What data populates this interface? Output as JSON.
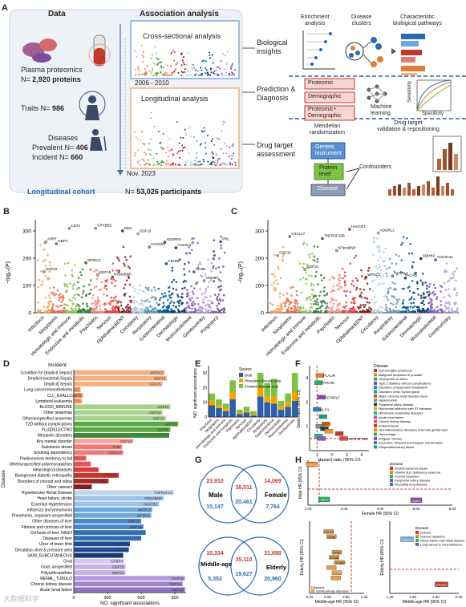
{
  "panel_a": {
    "letter": "A",
    "headers": {
      "data": "Data",
      "association": "Association analysis"
    },
    "plasma_line1": "Plasma proteomics",
    "plasma_n_prefix": "N= ",
    "plasma_n_value": "2,920 proteins",
    "traits_prefix": "Traits N= ",
    "traits_value": "986",
    "diseases": "Diseases",
    "prevalent_prefix": "Prevalent N= ",
    "prevalent_value": "406",
    "incident_prefix": "Incident N= ",
    "incident_value": "660",
    "cross_title": "Cross-sectional analysis",
    "years": "2006 - 2010",
    "long_title": "Longitudinal analysis",
    "nov": "Nov. 2023",
    "cohort": "Longitudinal cohort",
    "participants_prefix": "N= ",
    "participants_value": "53,026 participants",
    "bio_insights": [
      "Biological",
      "insights"
    ],
    "enrichment": [
      "Enrichment",
      "analysis"
    ],
    "disease_clusters": [
      "Disease",
      "clusters"
    ],
    "characteristic": [
      "Characteristic",
      "biological pathways"
    ],
    "prediction": [
      "Prediction &",
      "Diagnosis"
    ],
    "proteomic": "Proteomic",
    "demographic": "Demographic",
    "prot_demo": [
      "Proteomic+",
      "Demographic"
    ],
    "machine_learning": [
      "Machine",
      "learning"
    ],
    "sensitivity": "Sensitivity",
    "specificity": "Specificity",
    "drug_target": [
      "Drug target",
      "assessment"
    ],
    "mendelian": [
      "Mendelian",
      "randomization"
    ],
    "genetic_instrument": [
      "Genetic",
      "instrument"
    ],
    "protein_level": [
      "Protein",
      "level"
    ],
    "disease_box": "Disease",
    "confounders": "Confounders",
    "drug_validation": [
      "Drug target",
      "validation & repositioning"
    ],
    "accent_blue": "#2b6cb0",
    "accent_orange": "#e07b39"
  },
  "panel_b": {
    "letter": "B",
    "ylabel": "−log₁₀(P)",
    "yticks": [
      "0",
      "100",
      "200",
      "300"
    ],
    "categories": [
      "Infectious",
      "Neoplasms",
      "Hematologic and immune",
      "Endocrine and metabolic",
      "Psychiatric",
      "Nervous",
      "Ophthalmic&ENT",
      "Circulatory",
      "Respiratory",
      "Gastrointestinal",
      "Dermatologic",
      "Musculoskeletal",
      "Genitourinary",
      "Pregnancy"
    ],
    "colors": [
      "#f4a261",
      "#e76f51",
      "#8bc34a",
      "#2e7d32",
      "#f28b82",
      "#e53935",
      "#8b1a1a",
      "#b3cde0",
      "#6497b1",
      "#005b96",
      "#03396c",
      "#7e57c2",
      "#b39ddb",
      "#6a4c93"
    ],
    "labels": [
      "GDF15",
      "APRT",
      "GBP4",
      "CD70",
      "WFDC2",
      "GDF15",
      "CRYBB2",
      "NTproBNP",
      "REN",
      "GDF15",
      "HAVCR1",
      "ADGRF5",
      "CRHBP",
      "COL9A1",
      "ACAN",
      "CRHBP",
      "PRL"
    ]
  },
  "panel_c": {
    "letter": "C",
    "ylabel": "−log₁₀(P)",
    "yticks": [
      "0",
      "100",
      "200",
      "300"
    ],
    "categories": [
      "Infectious",
      "Neoplasms",
      "Hematologic and immune",
      "Endocrine and metabolic",
      "Psychiatric",
      "Nervous",
      "Ophthalmic&ENT",
      "Circulatory",
      "Respiratory",
      "Gastrointestinal",
      "Dermatologic",
      "Musculoskeletal",
      "Genitourinary"
    ],
    "labels": [
      "GDF15",
      "CXCL17",
      "GDF15",
      "TNFRSF10B",
      "NTproBNP",
      "HAVCR1",
      "WFDC2",
      "ADGRL2",
      "ACVRL1",
      "ACAN",
      "CDHR2",
      "COL9A1"
    ]
  },
  "panel_d": {
    "letter": "D",
    "legend": "Incident",
    "ylabel": "Disease",
    "xlabel": "NO. significant associations",
    "xticks": [
      "0",
      "300",
      "600",
      "900"
    ]
  },
  "chart_data": [
    {
      "type": "bar",
      "title": "",
      "xlabel": "NO. significant associations",
      "ylabel": "Disease",
      "xlim": [
        0,
        1000
      ],
      "categories": [
        "Condition for [Implicit Sepsis]",
        "[Implicit bacterial] Sepsis",
        "[Implicit] Sepsis",
        "Lung cancer/mesothelioma",
        "CLL_EXALLC",
        "Lymphoid leukaemia",
        "BLOOD_IMMUNE",
        "Other anaemias",
        "Other/unspecified anaemias",
        "T2D without complications",
        "FLU|DELECTRO",
        "Metabolic disorders",
        "Any mental disorder",
        "Substance abuse",
        "Smoking dependency",
        "Parkinsonism tendency to fall",
        "Other/unspecified polyneuropathies",
        "Neurological diseases",
        "Background diabetic retinopathy",
        "Disorders of choroid and retina",
        "Other cataract",
        "Hypertensive Renal Disease",
        "Heart failure, stroke",
        "Essential Hypertension",
        "Influenza and pneumonia",
        "Pneumonia, organism unspecified",
        "Other diseases of liver",
        "Fibrosis and cirrhosis of liver",
        "Cirrhosis of liver, NASH",
        "Diseases of liver",
        "Ulcer of lower limb",
        "Decubitus ulcer & pressure area",
        "SKIN_SUBCUTANEOUS",
        "Gout",
        "Gout, unspecified",
        "Polyarthropathies",
        "RENAL_TUBULO",
        "Chronic kidney disease",
        "Acute renal failure"
      ],
      "values": [
        810,
        830,
        790,
        60,
        80,
        70,
        860,
        790,
        820,
        930,
        860,
        850,
        530,
        430,
        440,
        110,
        150,
        220,
        400,
        310,
        160,
        890,
        800,
        760,
        700,
        690,
        600,
        620,
        640,
        600,
        500,
        490,
        440,
        450,
        460,
        460,
        990,
        970,
        990
      ],
      "bar_labels": [
        "WFDC2",
        "GDF15",
        "GDF15",
        "",
        "CD70",
        "",
        "GDF15",
        "GDF15",
        "GDF15",
        "GDF15",
        "GDF15",
        "",
        "GDF15",
        "PI4B",
        "CXCL17",
        "",
        "",
        "",
        "PIK3IP1",
        "PLXNB2",
        "EDA2R",
        "TNFRSF13",
        "NTproBNP",
        "HAVCR1",
        "WFDC2",
        "WFDC2",
        "GDF15",
        "GDF15",
        "",
        "",
        "GDF15",
        "GDF15",
        "",
        "GFBP4",
        "GDF15",
        "GDF15",
        "GDF15",
        "GDF15",
        "GDF15"
      ],
      "colors": [
        "#f4b183",
        "#f4b183",
        "#f4b183",
        "#f08c5a",
        "#f08c5a",
        "#f08c5a",
        "#a9d18e",
        "#a9d18e",
        "#a9d18e",
        "#5aa845",
        "#5aa845",
        "#3d8b37",
        "#f8a5a5",
        "#f07b7b",
        "#f07b7b",
        "#e05555",
        "#e05555",
        "#d93a3a",
        "#c0392b",
        "#a52a2a",
        "#8b1a1a",
        "#bdd7ee",
        "#9dc3e6",
        "#9dc3e6",
        "#6fa8dc",
        "#6fa8dc",
        "#4a86c8",
        "#4a86c8",
        "#2f6db5",
        "#2f6db5",
        "#1f4e91",
        "#1f4e91",
        "#163a70",
        "#d6c8ef",
        "#c5b3e6",
        "#c5b3e6",
        "#b29bd9",
        "#9f86cf",
        "#8e72c5"
      ]
    },
    {
      "type": "bar",
      "title": "",
      "ylabel": "NO. significant associations",
      "ylim": [
        0,
        35
      ],
      "categories": [
        "Infectious",
        "Neoplasms",
        "Hematologic and immune",
        "Endocrine and metabolic",
        "Psychiatric",
        "Nervous",
        "Ophthalmic&ENT",
        "Circulatory",
        "Respiratory",
        "Gastrointestinal",
        "Dermatologic",
        "Musculoskeletal",
        "Genitourinary"
      ],
      "series": [
        {
          "name": "Both",
          "values": [
            8,
            6,
            4,
            12,
            2,
            3,
            1,
            14,
            10,
            9,
            5,
            7,
            11
          ]
        },
        {
          "name": "Prevalent disease only",
          "values": [
            3,
            2,
            2,
            5,
            1,
            1,
            1,
            6,
            4,
            5,
            2,
            3,
            6
          ]
        },
        {
          "name": "Incident disease only",
          "values": [
            5,
            4,
            3,
            8,
            2,
            3,
            2,
            10,
            9,
            12,
            4,
            6,
            13
          ]
        }
      ],
      "series_colors": [
        "#2f5fa7",
        "#f4a300",
        "#7dc242"
      ],
      "legend_title": "Source",
      "yticks": [
        "0",
        "10",
        "20",
        "30"
      ]
    },
    {
      "type": "scatter",
      "title": "",
      "xlabel": "Hazard ratio (95% CI)",
      "ylabel": "Odds ratio (95% CI)",
      "xticks": [
        "1",
        "2",
        "3",
        "4"
      ],
      "yticks": [
        "2",
        "3",
        "4"
      ],
      "legend_title": "Disease",
      "legend": [
        "Non-Hodgkin lymphoma",
        "Malignant neoplasm of prostate",
        "Leiomyoma of uterus",
        "Type 2 diabetes without complications",
        "Disorders of lipoprotein metabolism",
        "Disorders of the thyroid gland",
        "Major coronary heart disease event",
        "Hypertension",
        "Peripheral artery disease",
        "Myocardial infarction with ST elevation",
        "Mitral/valve respiratory diseases",
        "Acute renal failure",
        "Chronic kidney disease",
        "Endometriosis",
        "Non-inflammatory disorders of female genital tract",
        "Hemorrhage",
        "Irregular menses",
        "Excessive, frequent and irregular menstruation",
        "Unspecified kidney failure"
      ],
      "labels": [
        "TNFRSF13B",
        "PLAUR",
        "ATRAID",
        "CD300LF",
        "KLF4"
      ],
      "x": [
        2.5,
        1.2,
        1.1,
        1.3,
        1.0,
        1.4,
        1.6,
        1.2,
        1.5,
        1.8,
        1.1,
        1.3,
        2.8
      ],
      "y": [
        1.7,
        4.1,
        3.8,
        3.2,
        2.7,
        2.4,
        2.1,
        2.0,
        1.9,
        1.8,
        1.6,
        1.5,
        1.5
      ]
    },
    {
      "type": "scatter",
      "title": "",
      "xlabel": "Female HR (95% CI)",
      "ylabel": "Male HR (95% CI)",
      "xticks": [
        "1.00",
        "2.00",
        "4.00",
        "6.00",
        "8.20"
      ],
      "legend_title": "Disease",
      "legend": [
        "Implicit bacterial sepsis",
        "Vitamin B12 deficiency anaemia",
        "Volume depletion",
        "Peripheral artery disease",
        "Interstitial lung disease"
      ],
      "labels": [
        "GDF15",
        "TFF3",
        "CDK4"
      ],
      "x": [
        1.2,
        1.8,
        6.4
      ],
      "y": [
        6.0,
        1.7,
        1.6
      ]
    },
    {
      "type": "scatter",
      "title": "",
      "xlabel": "Middle-age HR (95% CI)",
      "ylabel": "Elderly HR (95% CI)",
      "xticks": [
        "0.20",
        "0.80",
        "0.90",
        "1.20"
      ],
      "legend": [
        "Diseases",
        "Genitourinary diseases"
      ],
      "labels": [
        "CCL14",
        "CD44",
        "CFAD",
        "CD164",
        "COL6A3"
      ],
      "x": [
        0.55,
        0.6,
        0.7,
        0.65,
        0.75,
        0.6,
        0.7,
        0.68
      ],
      "y": [
        1.2,
        1.15,
        1.0,
        0.95,
        0.9,
        0.85,
        0.8,
        0.75
      ]
    },
    {
      "type": "scatter",
      "title": "",
      "xlabel": "Middle-age HR (95% CI)",
      "ylabel": "Elderly HR (95% CI)",
      "xticks": [
        "1.20",
        "1.60",
        "2.00",
        "2.40"
      ],
      "legend_title": "Disease",
      "legend": [
        "Ketosis",
        "Volume depletion",
        "Renal tubulo-interstitial disease",
        "Lung cancer & mesothelioma"
      ],
      "labels": [
        "CDHR2",
        "EPHA2"
      ],
      "x": [
        1.5,
        2.1
      ],
      "y": [
        2.1,
        1.35
      ]
    }
  ],
  "panel_e": {
    "letter": "E",
    "legend_title": "Source",
    "ylabel": "NO. significant associations"
  },
  "panel_f": {
    "letter": "F"
  },
  "panel_g": {
    "letter": "G",
    "venn_top": {
      "left_label": "Male",
      "right_label": "Female",
      "left_top": "23,910",
      "overlap_top": "38,011",
      "right_top": "14,069",
      "left_bottom": "15,147",
      "overlap_bottom": "20,461",
      "right_bottom": "7,764"
    },
    "venn_bottom": {
      "left_label": "Middle-age",
      "right_label": "Elderly",
      "left_top": "10,334",
      "overlap_top": "35,110",
      "right_top": "31,688",
      "left_bottom": "5,353",
      "overlap_bottom": "19,627",
      "right_bottom": "20,960"
    },
    "colors": {
      "top": "#c0392b",
      "bottom": "#2b6cb0"
    }
  },
  "panel_h": {
    "letter": "H"
  },
  "watermark": "大数据科学"
}
